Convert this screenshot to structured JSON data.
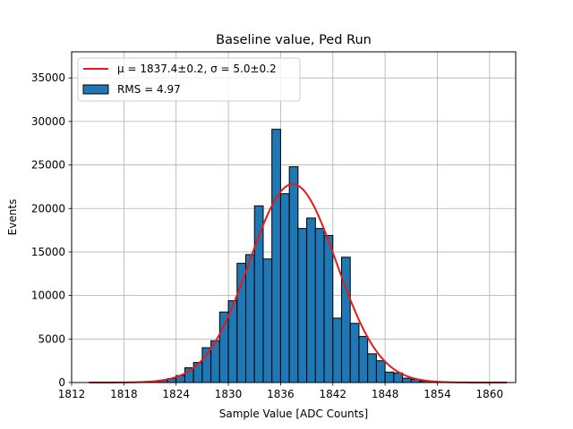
{
  "chart_data": {
    "type": "bar",
    "title": "Baseline value, Ped Run",
    "xlabel": "Sample Value [ADC Counts]",
    "ylabel": "Events",
    "xlim": [
      1812,
      1863
    ],
    "ylim": [
      0,
      38000
    ],
    "xticks": [
      1812,
      1818,
      1824,
      1830,
      1836,
      1842,
      1848,
      1854,
      1860
    ],
    "yticks": [
      0,
      5000,
      10000,
      15000,
      20000,
      25000,
      30000,
      35000
    ],
    "grid": true,
    "legend_position": "top-left",
    "histogram": {
      "name": "RMS = 4.97",
      "color": "#1f77b4",
      "edgecolor": "#000000",
      "bin_starts": [
        1821,
        1822,
        1823,
        1824,
        1825,
        1826,
        1827,
        1828,
        1829,
        1830,
        1831,
        1832,
        1833,
        1834,
        1835,
        1836,
        1837,
        1838,
        1839,
        1840,
        1841,
        1842,
        1843,
        1844,
        1845,
        1846,
        1847,
        1848,
        1849,
        1850,
        1851,
        1852,
        1853
      ],
      "bin_width": 1,
      "values": [
        150,
        250,
        450,
        800,
        1700,
        2300,
        4000,
        4800,
        8100,
        9400,
        13700,
        14700,
        20300,
        14200,
        29100,
        21700,
        24800,
        17700,
        18900,
        17700,
        16900,
        7400,
        14400,
        6800,
        5300,
        3300,
        2500,
        1200,
        1100,
        500,
        350,
        150,
        70
      ]
    },
    "fit": {
      "name_prefix": "μ = 1837.4±0.2, ",
      "name_suffix": "σ = 5.0±0.2",
      "color": "#e41a1c",
      "mu": 1837.4,
      "sigma": 5.0,
      "amplitude": 22800,
      "x_range": [
        1814,
        1862
      ]
    }
  }
}
